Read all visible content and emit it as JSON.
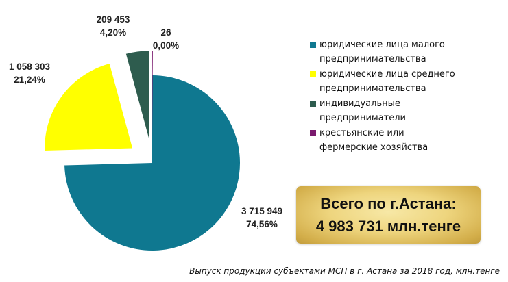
{
  "chart_data": {
    "type": "pie",
    "exploded": true,
    "slices": [
      {
        "name": "юридические лица малого предпринимательства",
        "value_label": "3 715 949",
        "percent_label": "74,56%",
        "value": 3715949,
        "percent": 74.56,
        "color": "#0f7890"
      },
      {
        "name": "юридические лица среднего предпринимательства",
        "value_label": "1 058 303",
        "percent_label": "21,24%",
        "value": 1058303,
        "percent": 21.24,
        "color": "#ffff00"
      },
      {
        "name": "индивидуальные предприниматели",
        "value_label": "209 453",
        "percent_label": "4,20%",
        "value": 209453,
        "percent": 4.2,
        "color": "#2e5c4e"
      },
      {
        "name": "крестьянские или фермерские хозяйства",
        "value_label": "26",
        "percent_label": "0,00%",
        "value": 26,
        "percent": 0.0,
        "color": "#7a1a6e"
      }
    ],
    "legend": {
      "position": "right",
      "items": [
        {
          "lines": [
            "юридические лица малого",
            "предпринимательства"
          ],
          "color": "#0f7890"
        },
        {
          "lines": [
            "юридические лица среднего",
            "предпринимательства"
          ],
          "color": "#ffff00"
        },
        {
          "lines": [
            "индивидуальные",
            "предприниматели"
          ],
          "color": "#2e5c4e"
        },
        {
          "lines": [
            "крестьянские или",
            "фермерские хозяйства"
          ],
          "color": "#7a1a6e"
        }
      ]
    }
  },
  "total": {
    "line1": "Всего по г.Астана:",
    "line2": "4 983 731 млн.тенге"
  },
  "caption": "Выпуск продукции субъектами МСП в г. Астана за 2018  год, млн.тенге"
}
